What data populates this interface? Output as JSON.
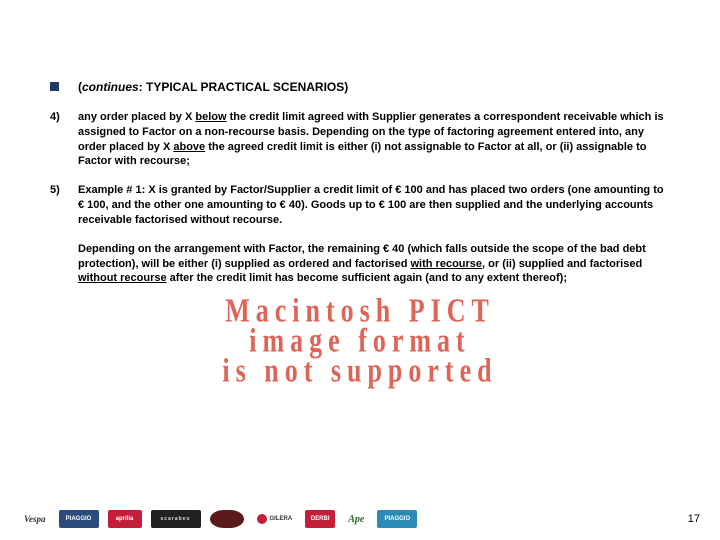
{
  "title": {
    "prefix_italic": "continues",
    "rest": ": TYPICAL PRACTICAL SCENARIOS)"
  },
  "items": [
    {
      "marker": "4)",
      "pre": "any order placed by X ",
      "u1": "below",
      "mid1": " the credit limit agreed with Supplier generates a correspondent receivable which is assigned to Factor on a non-recourse basis. Depending on the type of factoring agreement entered into, any order placed by X ",
      "u2": "above",
      "post": " the agreed credit limit is either (i) not assignable to Factor at all, or (ii) assignable to Factor with recourse;"
    },
    {
      "marker": "5)",
      "pre": "Example # 1: X is granted by Factor/Supplier a credit limit of € 100 and has placed two orders (one amounting to € 100, and the other one amounting to € 40). Goods up to € 100 are then supplied and the underlying accounts receivable factorised without recourse.",
      "u1": "",
      "mid1": "",
      "u2": "",
      "post": ""
    }
  ],
  "sub": {
    "pre": "Depending on the arrangement with Factor, the remaining € 40 (which falls outside the scope of the bad debt protection), will be either (i) supplied as ordered and factorised ",
    "u1": "with recourse",
    "mid": ", or (ii) supplied and factorised ",
    "u2": "without recourse",
    "post": " after the credit limit has become sufficient again (and to any extent thereof);"
  },
  "pict": {
    "line1": "Macintosh PICT",
    "line2": "image format",
    "line3": "is not supported",
    "color": "#d94a3a"
  },
  "footer": {
    "logos": [
      {
        "name": "vespa",
        "label": "Vespa"
      },
      {
        "name": "piaggio",
        "label": "PIAGGIO"
      },
      {
        "name": "aprilia",
        "label": "aprilia"
      },
      {
        "name": "scarabeo",
        "label": "scarabeo"
      },
      {
        "name": "motoguzzi",
        "label": ""
      },
      {
        "name": "gilera",
        "label": "GILERA"
      },
      {
        "name": "derbi",
        "label": "DERBI"
      },
      {
        "name": "ape",
        "label": "Ape"
      },
      {
        "name": "piaggio2",
        "label": "PIAGGIO"
      }
    ],
    "page": "17"
  },
  "colors": {
    "bullet": "#1f3864",
    "text": "#000000",
    "background": "#ffffff"
  }
}
